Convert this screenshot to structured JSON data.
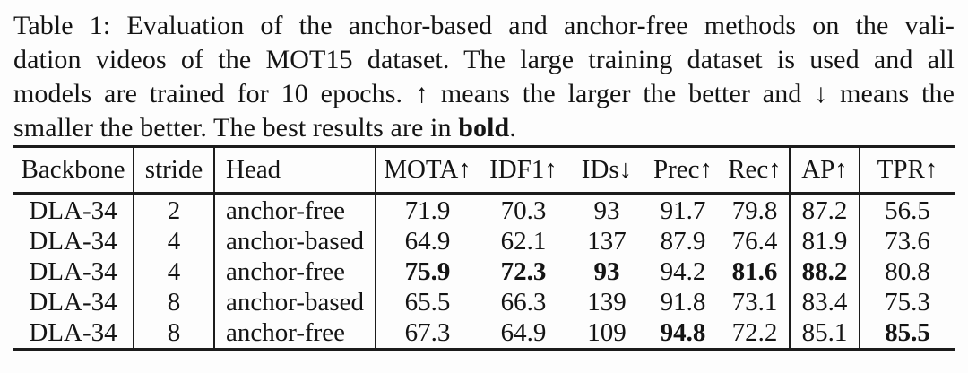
{
  "caption": {
    "lines": [
      "Table 1: Evaluation of the anchor-based and anchor-free methods on the vali-",
      "dation videos of the MOT15 dataset. The large training dataset is used and all",
      "models are trained for 10 epochs. ↑ means the larger the better and ↓ means the"
    ],
    "last_line_prefix": "smaller the better. The best results are in ",
    "last_line_bold": "bold",
    "last_line_suffix": "."
  },
  "table": {
    "headers": [
      "Backbone",
      "stride",
      "Head",
      "MOTA↑",
      "IDF1↑",
      "IDs↓",
      "Prec↑",
      "Rec↑",
      "AP↑",
      "TPR↑"
    ],
    "rows": [
      {
        "cells": [
          "DLA-34",
          "2",
          "anchor-free",
          "71.9",
          "70.3",
          "93",
          "91.7",
          "79.8",
          "87.2",
          "56.5"
        ],
        "bold": []
      },
      {
        "cells": [
          "DLA-34",
          "4",
          "anchor-based",
          "64.9",
          "62.1",
          "137",
          "87.9",
          "76.4",
          "81.9",
          "73.6"
        ],
        "bold": []
      },
      {
        "cells": [
          "DLA-34",
          "4",
          "anchor-free",
          "75.9",
          "72.3",
          "93",
          "94.2",
          "81.6",
          "88.2",
          "80.8"
        ],
        "bold": [
          3,
          4,
          5,
          7,
          8
        ]
      },
      {
        "cells": [
          "DLA-34",
          "8",
          "anchor-based",
          "65.5",
          "66.3",
          "139",
          "91.8",
          "73.1",
          "83.4",
          "75.3"
        ],
        "bold": []
      },
      {
        "cells": [
          "DLA-34",
          "8",
          "anchor-free",
          "67.3",
          "64.9",
          "109",
          "94.8",
          "72.2",
          "85.1",
          "85.5"
        ],
        "bold": [
          6,
          9
        ]
      }
    ]
  },
  "colors": {
    "text": "#141414",
    "rule": "#1c1c1c",
    "background": "#fdfdfd"
  }
}
